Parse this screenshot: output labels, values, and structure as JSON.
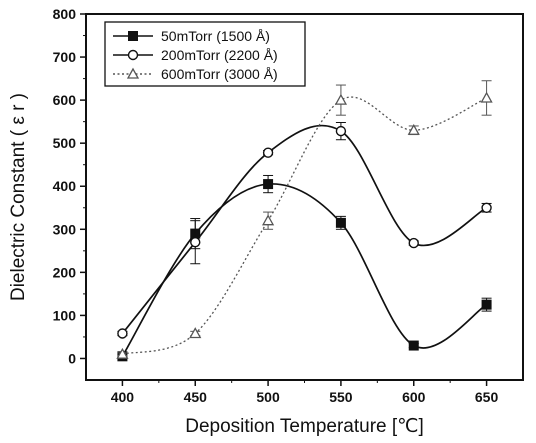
{
  "chart_data": {
    "type": "line",
    "xlabel": "Deposition Temperature [℃]",
    "ylabel": "Dielectric Constant ( ε r )",
    "xlim": [
      375,
      675
    ],
    "ylim": [
      -50,
      800
    ],
    "xticks": [
      400,
      450,
      500,
      550,
      600,
      650
    ],
    "yticks": [
      0,
      100,
      200,
      300,
      400,
      500,
      600,
      700,
      800
    ],
    "legend_position": "top-left",
    "grid": false,
    "smooth": true,
    "series": [
      {
        "name": "50mTorr (1500 Å)",
        "marker": "square-filled",
        "line": "solid",
        "color": "#111111",
        "x": [
          400,
          450,
          500,
          550,
          600,
          650
        ],
        "y": [
          5,
          290,
          405,
          315,
          30,
          125
        ],
        "err": [
          0,
          35,
          20,
          15,
          5,
          15
        ]
      },
      {
        "name": "200mTorr (2200 Å)",
        "marker": "circle-open",
        "line": "solid",
        "color": "#111111",
        "x": [
          400,
          450,
          500,
          550,
          600,
          650
        ],
        "y": [
          58,
          270,
          478,
          528,
          268,
          350
        ],
        "err": [
          5,
          50,
          5,
          20,
          5,
          10
        ]
      },
      {
        "name": "600mTorr (3000 Å)",
        "marker": "triangle-open",
        "line": "dotted",
        "color": "#555555",
        "x": [
          400,
          450,
          500,
          550,
          600,
          650
        ],
        "y": [
          10,
          58,
          320,
          600,
          530,
          605
        ],
        "err": [
          3,
          5,
          20,
          35,
          10,
          40
        ]
      }
    ]
  }
}
